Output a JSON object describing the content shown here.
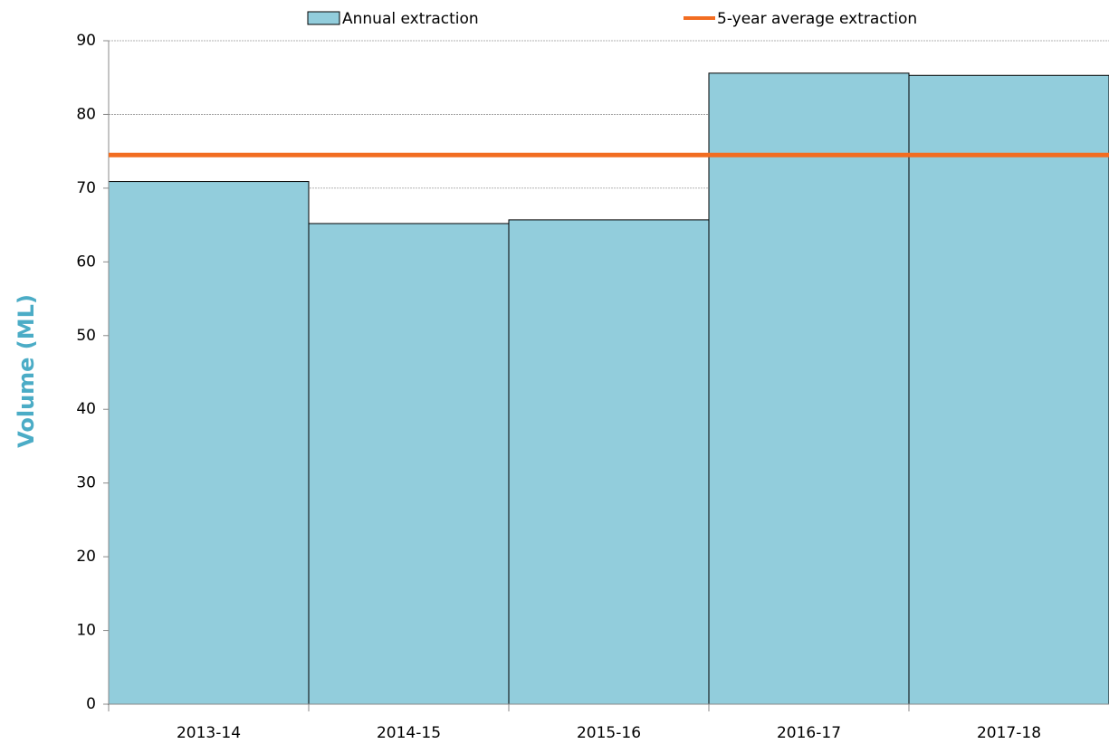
{
  "chart_data": {
    "type": "bar",
    "y_label": "Volume (ML)",
    "categories": [
      "2013-14",
      "2014-15",
      "2015-16",
      "2016-17",
      "2017-18"
    ],
    "series": [
      {
        "name": "Annual extraction",
        "color": "#92cddc",
        "values": [
          70.9,
          65.2,
          65.7,
          85.6,
          85.3
        ]
      }
    ],
    "reference_line": {
      "name": "5-year average extraction",
      "color": "#f26d21",
      "value": 74.5
    },
    "ylim": [
      0,
      90
    ],
    "yticks": [
      0,
      10,
      20,
      30,
      40,
      50,
      60,
      70,
      80,
      90
    ],
    "grid": true
  }
}
